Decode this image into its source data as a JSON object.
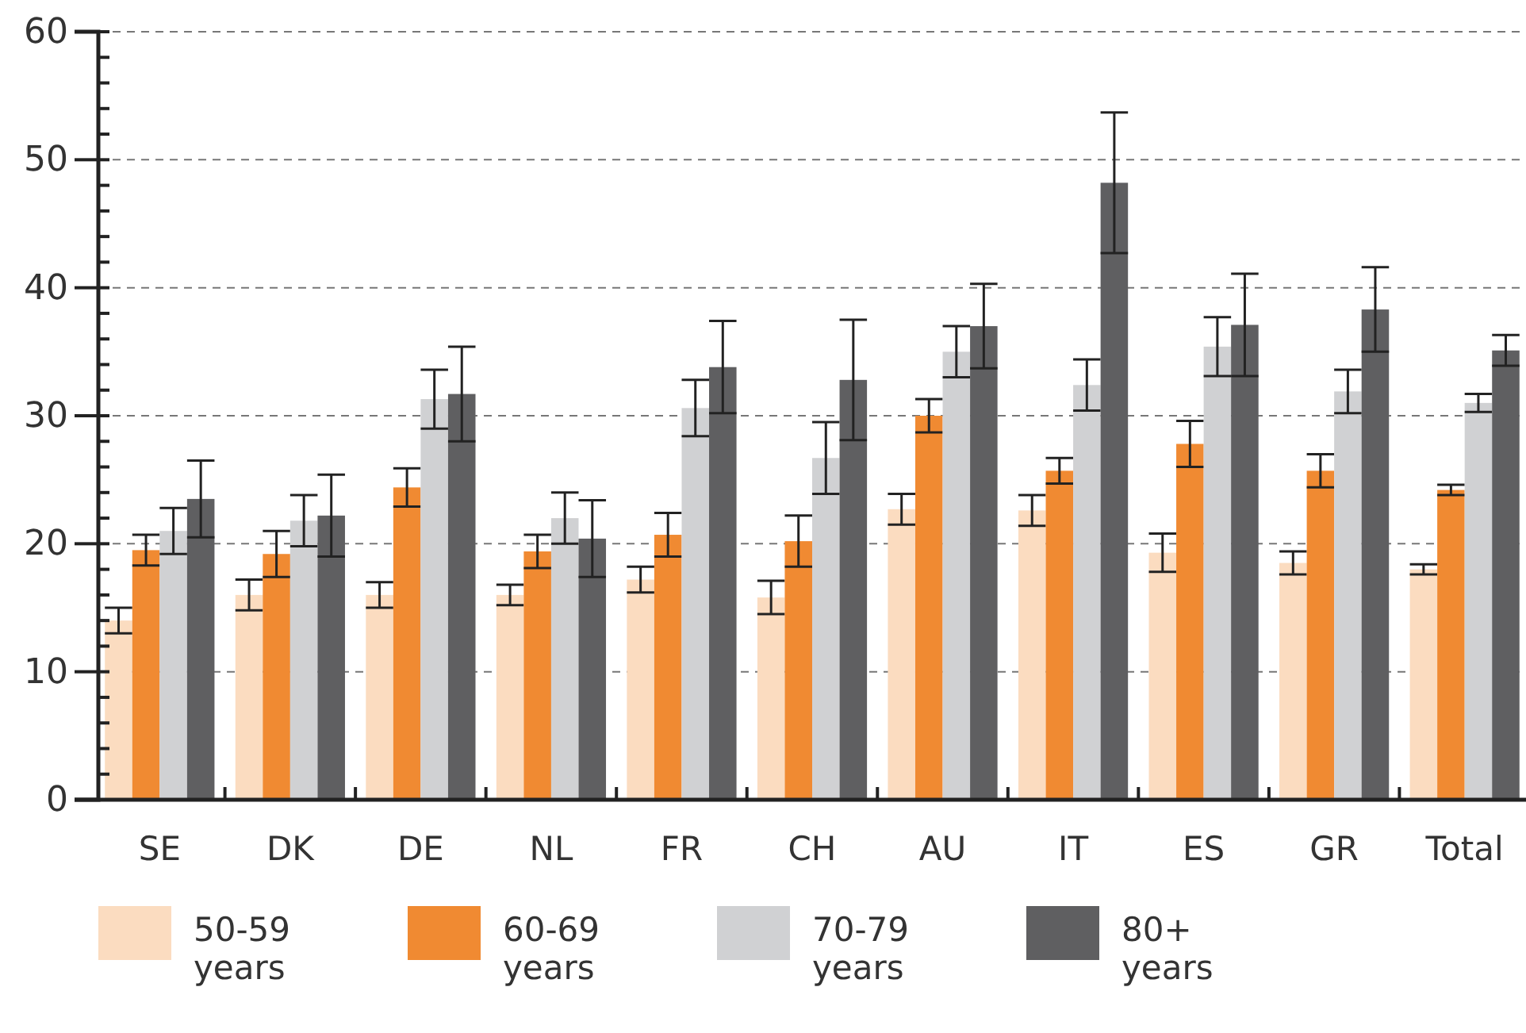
{
  "chart_data": {
    "type": "bar",
    "categories": [
      "SE",
      "DK",
      "DE",
      "NL",
      "FR",
      "CH",
      "AU",
      "IT",
      "ES",
      "GR",
      "Total"
    ],
    "series": [
      {
        "name": "50-59 years",
        "color": "#fbdcc0",
        "values": [
          14,
          16,
          16,
          16,
          17.2,
          15.8,
          22.7,
          22.6,
          19.3,
          18.5,
          18
        ],
        "errors": [
          1,
          1.2,
          1,
          0.8,
          1,
          1.3,
          1.2,
          1.2,
          1.5,
          0.9,
          0.4
        ]
      },
      {
        "name": "60-69 years",
        "color": "#f08a32",
        "values": [
          19.5,
          19.2,
          24.4,
          19.4,
          20.7,
          20.2,
          30,
          25.7,
          27.8,
          25.7,
          24.2
        ],
        "errors": [
          1.2,
          1.8,
          1.5,
          1.3,
          1.7,
          2,
          1.3,
          1,
          1.8,
          1.3,
          0.4
        ]
      },
      {
        "name": "70-79 years",
        "color": "#d0d1d3",
        "values": [
          21,
          21.8,
          31.3,
          22,
          30.6,
          26.7,
          35,
          32.4,
          35.4,
          31.9,
          31
        ],
        "errors": [
          1.8,
          2,
          2.3,
          2,
          2.2,
          2.8,
          2,
          2,
          2.3,
          1.7,
          0.7
        ]
      },
      {
        "name": "80+ years",
        "color": "#5f5f61",
        "values": [
          23.5,
          22.2,
          31.7,
          20.4,
          33.8,
          32.8,
          37,
          48.2,
          37.1,
          38.3,
          35.1
        ],
        "errors": [
          3,
          3.2,
          3.7,
          3,
          3.6,
          4.7,
          3.3,
          5.5,
          4,
          3.3,
          1.2
        ]
      }
    ],
    "ylim": [
      0,
      60
    ],
    "yticks": [
      0,
      {
        "value": 2,
        "label": null
      },
      {
        "value": 4,
        "label": null
      },
      {
        "value": 6,
        "label": null
      },
      {
        "value": 8,
        "label": null
      },
      10,
      {
        "value": 12,
        "label": null
      },
      {
        "value": 14,
        "label": null
      },
      {
        "value": 16,
        "label": null
      },
      {
        "value": 18,
        "label": null
      },
      20,
      {
        "value": 22,
        "label": null
      },
      {
        "value": 24,
        "label": null
      },
      {
        "value": 26,
        "label": null
      },
      {
        "value": 28,
        "label": null
      },
      30,
      {
        "value": 32,
        "label": null
      },
      {
        "value": 34,
        "label": null
      },
      {
        "value": 36,
        "label": null
      },
      {
        "value": 38,
        "label": null
      },
      40,
      {
        "value": 42,
        "label": null
      },
      {
        "value": 44,
        "label": null
      },
      {
        "value": 46,
        "label": null
      },
      {
        "value": 48,
        "label": null
      },
      50,
      {
        "value": 52,
        "label": null
      },
      {
        "value": 54,
        "label": null
      },
      {
        "value": 56,
        "label": null
      },
      {
        "value": 58,
        "label": null
      },
      60
    ],
    "grid": "y",
    "legend": "bottom"
  }
}
